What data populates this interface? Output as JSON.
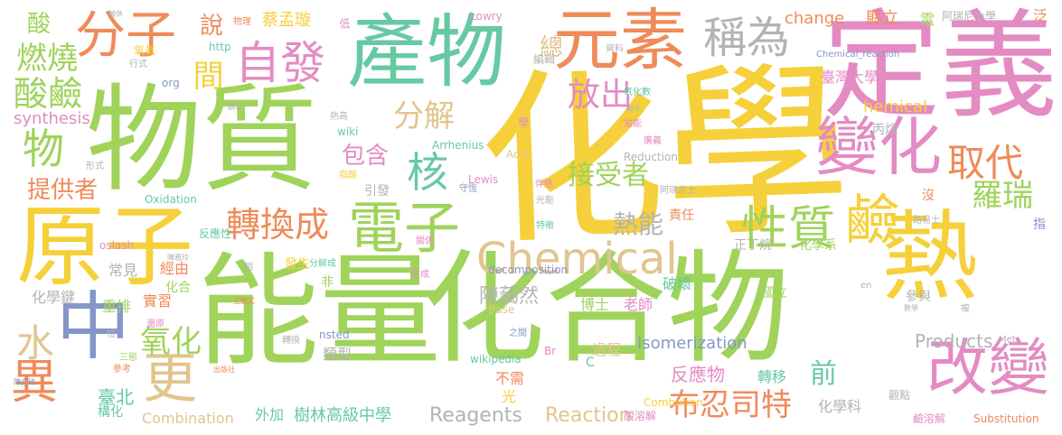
{
  "palette": {
    "yellow": "#f5d03a",
    "green": "#9fd35a",
    "teal": "#67c9a3",
    "pink": "#e48bc4",
    "orange": "#f08a59",
    "tan": "#e2c48e",
    "gray": "#b3b3b3",
    "blue": "#8596c9"
  },
  "words": [
    {
      "text": "化學",
      "color": "yellow"
    },
    {
      "text": "能量",
      "color": "green"
    },
    {
      "text": "化合物",
      "color": "green"
    },
    {
      "text": "物質",
      "color": "green"
    },
    {
      "text": "定義",
      "color": "pink"
    },
    {
      "text": "產物",
      "color": "teal"
    },
    {
      "text": "熱",
      "color": "yellow"
    },
    {
      "text": "原子",
      "color": "yellow"
    },
    {
      "text": "元素",
      "color": "orange"
    },
    {
      "text": "分子",
      "color": "orange"
    },
    {
      "text": "Chemical",
      "color": "tan"
    },
    {
      "text": "中",
      "color": "blue"
    },
    {
      "text": "變化",
      "color": "pink"
    },
    {
      "text": "改變",
      "color": "pink"
    },
    {
      "text": "電子",
      "color": "green"
    },
    {
      "text": "鹼",
      "color": "yellow"
    },
    {
      "text": "性質",
      "color": "green"
    },
    {
      "text": "轉換成",
      "color": "orange"
    },
    {
      "text": "自發",
      "color": "pink"
    },
    {
      "text": "稱為",
      "color": "gray"
    },
    {
      "text": "酸鹼",
      "color": "green"
    },
    {
      "text": "異",
      "color": "orange"
    },
    {
      "text": "更",
      "color": "tan"
    },
    {
      "text": "核",
      "color": "teal"
    },
    {
      "text": "物",
      "color": "green"
    },
    {
      "text": "水",
      "color": "tan"
    },
    {
      "text": "取代",
      "color": "orange"
    },
    {
      "text": "分解",
      "color": "tan"
    },
    {
      "text": "燃燒",
      "color": "green"
    },
    {
      "text": "放出",
      "color": "pink"
    },
    {
      "text": "羅瑞",
      "color": "green"
    },
    {
      "text": "總",
      "color": "tan"
    },
    {
      "text": "包含",
      "color": "pink"
    },
    {
      "text": "氧化",
      "color": "green"
    },
    {
      "text": "接受者",
      "color": "green"
    },
    {
      "text": "布忍司特",
      "color": "orange"
    },
    {
      "text": "熱能",
      "color": "gray"
    },
    {
      "text": "酸",
      "color": "green"
    },
    {
      "text": "說",
      "color": "orange"
    },
    {
      "text": "蔡孟璇",
      "color": "yellow"
    },
    {
      "text": "提供者",
      "color": "orange"
    },
    {
      "text": "前",
      "color": "teal"
    },
    {
      "text": "陳藹然",
      "color": "gray"
    },
    {
      "text": "臺北",
      "color": "teal"
    },
    {
      "text": "樹林高級中學",
      "color": "teal"
    },
    {
      "text": "反應物",
      "color": "pink"
    },
    {
      "text": "Reaction",
      "color": "tan"
    },
    {
      "text": "Combination",
      "color": "tan"
    },
    {
      "text": "Reagents",
      "color": "gray"
    },
    {
      "text": "Products",
      "color": "gray"
    },
    {
      "text": "Isomerization",
      "color": "blue"
    },
    {
      "text": "change",
      "color": "orange"
    },
    {
      "text": "synthesis",
      "color": "pink"
    },
    {
      "text": "hemical",
      "color": "yellow"
    },
    {
      "text": "Combution",
      "color": "yellow"
    },
    {
      "text": "decomposition",
      "color": "blue"
    },
    {
      "text": "Arrhenius",
      "color": "teal"
    },
    {
      "text": "wikipedia",
      "color": "teal"
    },
    {
      "text": "Oxidation",
      "color": "teal"
    },
    {
      "text": "Reduction",
      "color": "gray"
    },
    {
      "text": "Substitution",
      "color": "orange"
    },
    {
      "text": "Chemical_reaction",
      "color": "blue"
    },
    {
      "text": "Lowry",
      "color": "pink"
    },
    {
      "text": "Lewis",
      "color": "pink"
    },
    {
      "text": "Acid",
      "color": "tan"
    },
    {
      "text": "Base",
      "color": "tan"
    },
    {
      "text": "oslash",
      "color": "pink"
    },
    {
      "text": "nsted",
      "color": "blue"
    },
    {
      "text": "wiki",
      "color": "teal"
    },
    {
      "text": "http",
      "color": "teal"
    },
    {
      "text": "org",
      "color": "blue"
    },
    {
      "text": "Met",
      "color": "gray"
    },
    {
      "text": "en",
      "color": "gray"
    },
    {
      "text": "Br",
      "color": "pink"
    },
    {
      "text": "C",
      "color": "teal"
    },
    {
      "text": "縣立",
      "color": "orange"
    },
    {
      "text": "電",
      "color": "green"
    },
    {
      "text": "阿瑞尼士學",
      "color": "gray"
    },
    {
      "text": "泛",
      "color": "orange"
    },
    {
      "text": "臺灣大學",
      "color": "pink"
    },
    {
      "text": "丙烷",
      "color": "gray"
    },
    {
      "text": "正丁烷",
      "color": "gray"
    },
    {
      "text": "化學系",
      "color": "green"
    },
    {
      "text": "國立",
      "color": "green"
    },
    {
      "text": "參與",
      "color": "gray"
    },
    {
      "text": "博士",
      "color": "green"
    },
    {
      "text": "老師",
      "color": "pink"
    },
    {
      "text": "破壞",
      "color": "teal"
    },
    {
      "text": "轉移",
      "color": "teal"
    },
    {
      "text": "過程",
      "color": "tan"
    },
    {
      "text": "不需",
      "color": "orange"
    },
    {
      "text": "光",
      "color": "yellow"
    },
    {
      "text": "外加",
      "color": "teal"
    },
    {
      "text": "化學科",
      "color": "gray"
    },
    {
      "text": "觀點",
      "color": "gray"
    },
    {
      "text": "鹼溶解",
      "color": "pink"
    },
    {
      "text": "酸溶解",
      "color": "pink"
    },
    {
      "text": "責任",
      "color": "orange"
    },
    {
      "text": "重排",
      "color": "green"
    },
    {
      "text": "實習",
      "color": "orange"
    },
    {
      "text": "常見",
      "color": "gray"
    },
    {
      "text": "經由",
      "color": "orange"
    },
    {
      "text": "化合",
      "color": "green"
    },
    {
      "text": "發生",
      "color": "yellow"
    },
    {
      "text": "分解成",
      "color": "teal"
    },
    {
      "text": "化學鍵",
      "color": "gray"
    },
    {
      "text": "類型",
      "color": "gray"
    },
    {
      "text": "構化",
      "color": "teal"
    },
    {
      "text": "引發",
      "color": "gray"
    },
    {
      "text": "間",
      "color": "yellow"
    },
    {
      "text": "低",
      "color": "pink"
    },
    {
      "text": "物理",
      "color": "orange"
    },
    {
      "text": "氧氣",
      "color": "yellow"
    },
    {
      "text": "行式",
      "color": "gray"
    },
    {
      "text": "編輯",
      "color": "gray"
    },
    {
      "text": "資料",
      "color": "gray"
    },
    {
      "text": "氧化數",
      "color": "teal"
    },
    {
      "text": "熱高",
      "color": "gray"
    },
    {
      "text": "高中",
      "color": "gray"
    },
    {
      "text": "學",
      "color": "pink"
    },
    {
      "text": "電能",
      "color": "pink"
    },
    {
      "text": "廣義",
      "color": "pink"
    },
    {
      "text": "光能",
      "color": "gray"
    },
    {
      "text": "伴隨",
      "color": "pink"
    },
    {
      "text": "守恆",
      "color": "blue"
    },
    {
      "text": "指酸",
      "color": "yellow"
    },
    {
      "text": "形式",
      "color": "gray"
    },
    {
      "text": "反應性",
      "color": "teal"
    },
    {
      "text": "關係",
      "color": "pink"
    },
    {
      "text": "生成",
      "color": "pink"
    },
    {
      "text": "特徵",
      "color": "teal"
    },
    {
      "text": "阿瑞尼士",
      "color": "gray"
    },
    {
      "text": "沒",
      "color": "orange"
    },
    {
      "text": "路易士",
      "color": "gray"
    },
    {
      "text": "指",
      "color": "blue"
    },
    {
      "text": "陳雅玲",
      "color": "gray"
    },
    {
      "text": "相",
      "color": "gray"
    },
    {
      "text": "互動式",
      "color": "orange"
    },
    {
      "text": "非",
      "color": "green"
    },
    {
      "text": "還原",
      "color": "pink"
    },
    {
      "text": "三態",
      "color": "green"
    },
    {
      "text": "位",
      "color": "gray"
    },
    {
      "text": "轉換",
      "color": "gray"
    },
    {
      "text": "之間",
      "color": "blue"
    },
    {
      "text": "參考",
      "color": "orange"
    },
    {
      "text": "出版社",
      "color": "orange"
    },
    {
      "text": "陳文琦",
      "color": "blue"
    },
    {
      "text": "複",
      "color": "gray"
    },
    {
      "text": "數學",
      "color": "gray"
    },
    {
      "text": "輪休",
      "color": "gray"
    },
    {
      "text": "讀表",
      "color": "gray"
    }
  ]
}
